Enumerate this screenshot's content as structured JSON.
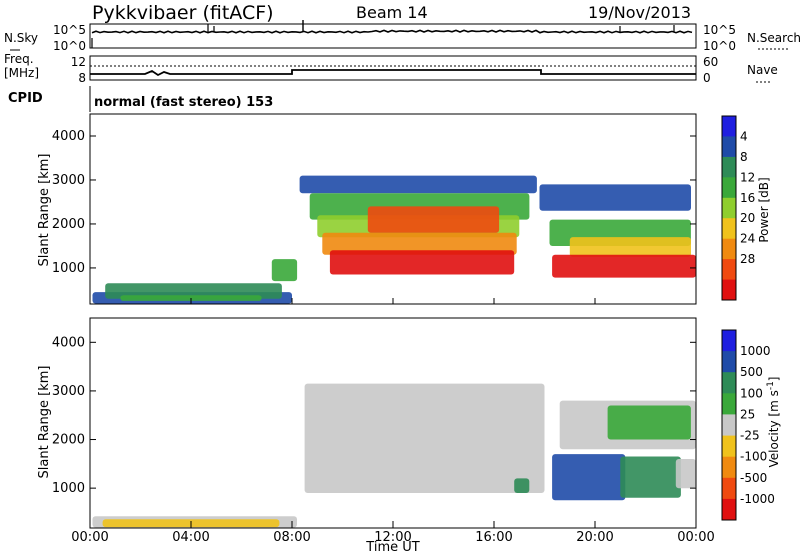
{
  "header": {
    "station": "Pykkvibaer (fitACF)",
    "beam": "Beam 14",
    "date": "19/Nov/2013"
  },
  "top_panel": {
    "left_label": "N.Sky",
    "right_label": "N.Search",
    "left_ticks": [
      "10^5",
      "10^0"
    ],
    "right_ticks": [
      "10^5",
      "10^0"
    ]
  },
  "freq_panel": {
    "left_label_1": "Freq.",
    "left_label_2": "[MHz]",
    "right_label": "Nave",
    "left_ticks": [
      "12",
      "8"
    ],
    "right_ticks": [
      "60",
      "0"
    ]
  },
  "cpid": {
    "label": "CPID",
    "value": "normal (fast stereo) 153"
  },
  "axes": {
    "ylabel": "Slant Range [km]",
    "yticks": [
      "4000",
      "3000",
      "2000",
      "1000"
    ],
    "ytick_values": [
      4000,
      3000,
      2000,
      1000
    ],
    "ylim": [
      180,
      4500
    ],
    "xlabel": "Time UT",
    "xticks": [
      "00:00",
      "04:00",
      "08:00",
      "12:00",
      "16:00",
      "20:00",
      "00:00"
    ],
    "xtick_hours": [
      0,
      4,
      8,
      12,
      16,
      20,
      24
    ],
    "xlim": [
      0,
      24
    ]
  },
  "chart_data": [
    {
      "type": "heatmap",
      "panel": "power",
      "colorbar_title": "Power [dB]",
      "colorbar_ticks": [
        "4",
        "8",
        "12",
        "16",
        "20",
        "24",
        "28"
      ],
      "colorbar_colors": [
        "#1f1fe0",
        "#1f4ba8",
        "#2e8b57",
        "#3aa83a",
        "#8fce2e",
        "#f0c21c",
        "#f08a10",
        "#f04a10",
        "#e01010"
      ],
      "regions": [
        {
          "t0": 0.1,
          "t1": 8.0,
          "r0": 190,
          "r1": 450,
          "color": "#1f4ba8"
        },
        {
          "t0": 0.6,
          "t1": 7.6,
          "r0": 300,
          "r1": 650,
          "color": "#2e8b57"
        },
        {
          "t0": 1.2,
          "t1": 6.8,
          "r0": 250,
          "r1": 380,
          "color": "#3aa83a"
        },
        {
          "t0": 7.2,
          "t1": 8.2,
          "r0": 700,
          "r1": 1200,
          "color": "#3aa83a"
        },
        {
          "t0": 8.3,
          "t1": 17.7,
          "r0": 2700,
          "r1": 3100,
          "color": "#1f4ba8"
        },
        {
          "t0": 8.7,
          "t1": 17.4,
          "r0": 2100,
          "r1": 2700,
          "color": "#3aa83a"
        },
        {
          "t0": 9.0,
          "t1": 17.0,
          "r0": 1700,
          "r1": 2200,
          "color": "#8fce2e"
        },
        {
          "t0": 9.2,
          "t1": 16.9,
          "r0": 1300,
          "r1": 1800,
          "color": "#f08a10"
        },
        {
          "t0": 9.5,
          "t1": 16.8,
          "r0": 850,
          "r1": 1400,
          "color": "#e01010"
        },
        {
          "t0": 11.0,
          "t1": 16.2,
          "r0": 1800,
          "r1": 2400,
          "color": "#f04a10"
        },
        {
          "t0": 17.8,
          "t1": 23.8,
          "r0": 2300,
          "r1": 2900,
          "color": "#1f4ba8"
        },
        {
          "t0": 18.2,
          "t1": 23.8,
          "r0": 1500,
          "r1": 2100,
          "color": "#3aa83a"
        },
        {
          "t0": 19.0,
          "t1": 23.8,
          "r0": 1250,
          "r1": 1700,
          "color": "#f0c21c"
        },
        {
          "t0": 18.3,
          "t1": 24.0,
          "r0": 780,
          "r1": 1300,
          "color": "#e01010"
        }
      ]
    },
    {
      "type": "heatmap",
      "panel": "velocity",
      "colorbar_title": "Velocity [m s^-1]",
      "colorbar_ticks": [
        "1000",
        "500",
        "100",
        "25",
        "-25",
        "-100",
        "-500",
        "-1000"
      ],
      "colorbar_colors": [
        "#1f1fe0",
        "#1f4ba8",
        "#2e8b57",
        "#3aa83a",
        "#c8c8c8",
        "#f0c21c",
        "#f08a10",
        "#f04a10",
        "#e01010"
      ],
      "regions": [
        {
          "t0": 0.1,
          "t1": 8.2,
          "r0": 190,
          "r1": 420,
          "color": "#c8c8c8"
        },
        {
          "t0": 0.5,
          "t1": 7.5,
          "r0": 200,
          "r1": 360,
          "color": "#f0c21c"
        },
        {
          "t0": 8.5,
          "t1": 18.0,
          "r0": 900,
          "r1": 3150,
          "color": "#c8c8c8"
        },
        {
          "t0": 16.8,
          "t1": 17.4,
          "r0": 900,
          "r1": 1200,
          "color": "#2e8b57"
        },
        {
          "t0": 18.6,
          "t1": 24.0,
          "r0": 1800,
          "r1": 2800,
          "color": "#c8c8c8"
        },
        {
          "t0": 20.5,
          "t1": 23.8,
          "r0": 2000,
          "r1": 2700,
          "color": "#3aa83a"
        },
        {
          "t0": 18.3,
          "t1": 21.2,
          "r0": 750,
          "r1": 1700,
          "color": "#1f4ba8"
        },
        {
          "t0": 21.0,
          "t1": 23.4,
          "r0": 800,
          "r1": 1650,
          "color": "#2e8b57"
        },
        {
          "t0": 23.2,
          "t1": 24.0,
          "r0": 1000,
          "r1": 1600,
          "color": "#c8c8c8"
        }
      ]
    }
  ]
}
